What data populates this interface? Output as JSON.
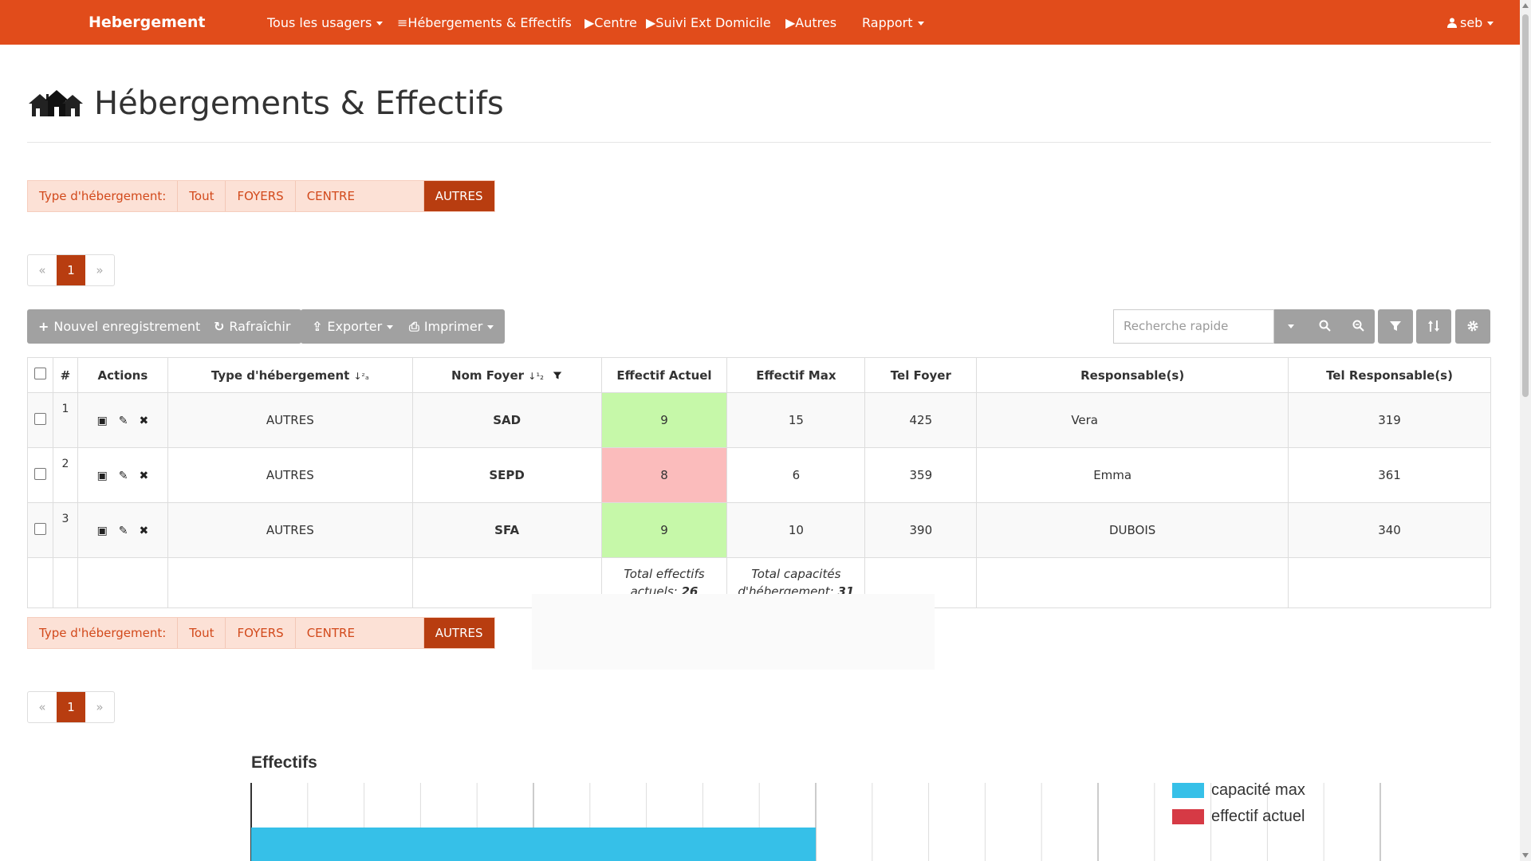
{
  "navbar": {
    "brand": "Hebergement",
    "items": [
      {
        "label": "Tous les usagers",
        "dropdown": true
      },
      {
        "label": "≡Hébergements & Effectifs",
        "dropdown": false
      },
      {
        "label": "▶Centre",
        "dropdown": false
      },
      {
        "label": "▶Suivi Ext Domicile",
        "dropdown": false
      },
      {
        "label": "▶Autres",
        "dropdown": false
      },
      {
        "label": "Rapport",
        "dropdown": true
      }
    ],
    "user": "seb",
    "color": "#e14c1b"
  },
  "page": {
    "title": "Hébergements & Effectifs",
    "icon": "houses-icon"
  },
  "filter": {
    "label": "Type d'hébergement:",
    "options": [
      "Tout",
      "FOYERS",
      "CENTRE",
      "AUTRES"
    ],
    "active": "AUTRES"
  },
  "pagination": {
    "prev": "«",
    "current": "1",
    "next": "»"
  },
  "toolbar": {
    "new_record": "Nouvel enregistrement",
    "refresh": "Rafraîchir",
    "export": "Exporter",
    "print": "Imprimer",
    "search_placeholder": "Recherche rapide"
  },
  "table": {
    "columns": [
      "#",
      "Actions",
      "Type d'hébergement",
      "Nom Foyer",
      "Effectif Actuel",
      "Effectif Max",
      "Tel Foyer",
      "Responsable(s)",
      "Tel Responsable(s)"
    ],
    "rows": [
      {
        "num": "1",
        "type": "AUTRES",
        "nom": "SAD",
        "actuel": "9",
        "max": "15",
        "tel": "425",
        "resp": "Vera",
        "tel_resp": "319",
        "status": "ok"
      },
      {
        "num": "2",
        "type": "AUTRES",
        "nom": "SEPD",
        "actuel": "8",
        "max": "6",
        "tel": "359",
        "resp": "Emma",
        "tel_resp": "361",
        "status": "over"
      },
      {
        "num": "3",
        "type": "AUTRES",
        "nom": "SFA",
        "actuel": "9",
        "max": "10",
        "tel": "390",
        "resp": "DUBOIS",
        "tel_resp": "340",
        "status": "ok"
      }
    ],
    "totals": {
      "actuel_label": "Total effectifs actuels:",
      "actuel_value": "26",
      "max_label": "Total capacités d'hébergement:",
      "max_value": "31"
    },
    "colors": {
      "ok": "#c6f8a9",
      "over": "#fbbcbc"
    }
  },
  "chart_data": {
    "type": "bar",
    "title": "Effectifs",
    "orientation": "horizontal",
    "series": [
      {
        "name": "capacité max",
        "color": "#36c0e8",
        "values": [
          10
        ]
      },
      {
        "name": "effectif actuel",
        "color": "#d63a45",
        "values": []
      }
    ],
    "xlim": [
      0,
      20
    ],
    "grid": true,
    "legend": "top-right"
  }
}
